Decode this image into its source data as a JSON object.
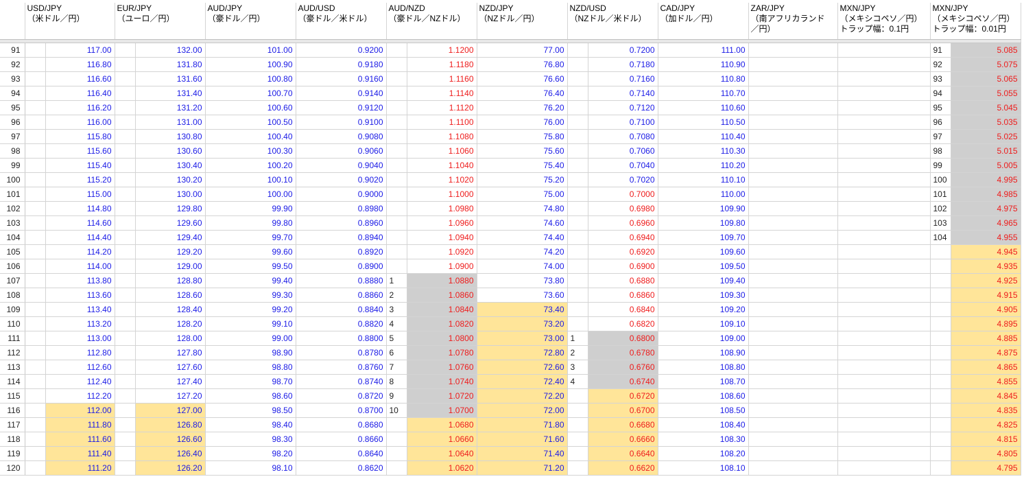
{
  "headers": [
    {
      "title": "USD/JPY",
      "sub": "（米ドル／円）"
    },
    {
      "title": "EUR/JPY",
      "sub": "（ユーロ／円）"
    },
    {
      "title": "AUD/JPY",
      "sub": "（豪ドル／円）"
    },
    {
      "title": "AUD/USD",
      "sub": "（豪ドル／米ドル）"
    },
    {
      "title": "AUD/NZD",
      "sub": "（豪ドル／NZドル）"
    },
    {
      "title": "NZD/JPY",
      "sub": "（NZドル／円）"
    },
    {
      "title": "NZD/USD",
      "sub": "（NZドル／米ドル）"
    },
    {
      "title": "CAD/JPY",
      "sub": "（加ドル／円）"
    },
    {
      "title": "ZAR/JPY",
      "sub": "（南アフリカランド",
      "sub2": "／円）"
    },
    {
      "title": "MXN/JPY",
      "sub": "（メキシコペソ／円）",
      "sub2": "トラップ幅：0.1円"
    },
    {
      "title": "MXN/JPY",
      "sub": "（メキシコペソ／円）",
      "sub2": "トラップ幅：0.01円"
    }
  ],
  "rows": [
    {
      "n": "91",
      "usd": "117.00",
      "eur": "132.00",
      "audjpy": "101.00",
      "audusd": "0.9200",
      "audnzd_i": "",
      "audnzd": "1.1200",
      "nzdjpy": "77.00",
      "nzdusd_i": "",
      "nzdusd": "0.7200",
      "cad": "111.00",
      "mxn_i": "91",
      "mxn": "5.085"
    },
    {
      "n": "92",
      "usd": "116.80",
      "eur": "131.80",
      "audjpy": "100.90",
      "audusd": "0.9180",
      "audnzd_i": "",
      "audnzd": "1.1180",
      "nzdjpy": "76.80",
      "nzdusd_i": "",
      "nzdusd": "0.7180",
      "cad": "110.90",
      "mxn_i": "92",
      "mxn": "5.075"
    },
    {
      "n": "93",
      "usd": "116.60",
      "eur": "131.60",
      "audjpy": "100.80",
      "audusd": "0.9160",
      "audnzd_i": "",
      "audnzd": "1.1160",
      "nzdjpy": "76.60",
      "nzdusd_i": "",
      "nzdusd": "0.7160",
      "cad": "110.80",
      "mxn_i": "93",
      "mxn": "5.065"
    },
    {
      "n": "94",
      "usd": "116.40",
      "eur": "131.40",
      "audjpy": "100.70",
      "audusd": "0.9140",
      "audnzd_i": "",
      "audnzd": "1.1140",
      "nzdjpy": "76.40",
      "nzdusd_i": "",
      "nzdusd": "0.7140",
      "cad": "110.70",
      "mxn_i": "94",
      "mxn": "5.055"
    },
    {
      "n": "95",
      "usd": "116.20",
      "eur": "131.20",
      "audjpy": "100.60",
      "audusd": "0.9120",
      "audnzd_i": "",
      "audnzd": "1.1120",
      "nzdjpy": "76.20",
      "nzdusd_i": "",
      "nzdusd": "0.7120",
      "cad": "110.60",
      "mxn_i": "95",
      "mxn": "5.045"
    },
    {
      "n": "96",
      "usd": "116.00",
      "eur": "131.00",
      "audjpy": "100.50",
      "audusd": "0.9100",
      "audnzd_i": "",
      "audnzd": "1.1100",
      "nzdjpy": "76.00",
      "nzdusd_i": "",
      "nzdusd": "0.7100",
      "cad": "110.50",
      "mxn_i": "96",
      "mxn": "5.035"
    },
    {
      "n": "97",
      "usd": "115.80",
      "eur": "130.80",
      "audjpy": "100.40",
      "audusd": "0.9080",
      "audnzd_i": "",
      "audnzd": "1.1080",
      "nzdjpy": "75.80",
      "nzdusd_i": "",
      "nzdusd": "0.7080",
      "cad": "110.40",
      "mxn_i": "97",
      "mxn": "5.025"
    },
    {
      "n": "98",
      "usd": "115.60",
      "eur": "130.60",
      "audjpy": "100.30",
      "audusd": "0.9060",
      "audnzd_i": "",
      "audnzd": "1.1060",
      "nzdjpy": "75.60",
      "nzdusd_i": "",
      "nzdusd": "0.7060",
      "cad": "110.30",
      "mxn_i": "98",
      "mxn": "5.015"
    },
    {
      "n": "99",
      "usd": "115.40",
      "eur": "130.40",
      "audjpy": "100.20",
      "audusd": "0.9040",
      "audnzd_i": "",
      "audnzd": "1.1040",
      "nzdjpy": "75.40",
      "nzdusd_i": "",
      "nzdusd": "0.7040",
      "cad": "110.20",
      "mxn_i": "99",
      "mxn": "5.005"
    },
    {
      "n": "100",
      "usd": "115.20",
      "eur": "130.20",
      "audjpy": "100.10",
      "audusd": "0.9020",
      "audnzd_i": "",
      "audnzd": "1.1020",
      "nzdjpy": "75.20",
      "nzdusd_i": "",
      "nzdusd": "0.7020",
      "cad": "110.10",
      "mxn_i": "100",
      "mxn": "4.995"
    },
    {
      "n": "101",
      "usd": "115.00",
      "eur": "130.00",
      "audjpy": "100.00",
      "audusd": "0.9000",
      "audnzd_i": "",
      "audnzd": "1.1000",
      "nzdjpy": "75.00",
      "nzdusd_i": "",
      "nzdusd": "0.7000",
      "cad": "110.00",
      "mxn_i": "101",
      "mxn": "4.985"
    },
    {
      "n": "102",
      "usd": "114.80",
      "eur": "129.80",
      "audjpy": "99.90",
      "audusd": "0.8980",
      "audnzd_i": "",
      "audnzd": "1.0980",
      "nzdjpy": "74.80",
      "nzdusd_i": "",
      "nzdusd": "0.6980",
      "cad": "109.90",
      "mxn_i": "102",
      "mxn": "4.975"
    },
    {
      "n": "103",
      "usd": "114.60",
      "eur": "129.60",
      "audjpy": "99.80",
      "audusd": "0.8960",
      "audnzd_i": "",
      "audnzd": "1.0960",
      "nzdjpy": "74.60",
      "nzdusd_i": "",
      "nzdusd": "0.6960",
      "cad": "109.80",
      "mxn_i": "103",
      "mxn": "4.965"
    },
    {
      "n": "104",
      "usd": "114.40",
      "eur": "129.40",
      "audjpy": "99.70",
      "audusd": "0.8940",
      "audnzd_i": "",
      "audnzd": "1.0940",
      "nzdjpy": "74.40",
      "nzdusd_i": "",
      "nzdusd": "0.6940",
      "cad": "109.70",
      "mxn_i": "104",
      "mxn": "4.955"
    },
    {
      "n": "105",
      "usd": "114.20",
      "eur": "129.20",
      "audjpy": "99.60",
      "audusd": "0.8920",
      "audnzd_i": "",
      "audnzd": "1.0920",
      "nzdjpy": "74.20",
      "nzdusd_i": "",
      "nzdusd": "0.6920",
      "cad": "109.60",
      "mxn_i": "",
      "mxn": "4.945"
    },
    {
      "n": "106",
      "usd": "114.00",
      "eur": "129.00",
      "audjpy": "99.50",
      "audusd": "0.8900",
      "audnzd_i": "",
      "audnzd": "1.0900",
      "nzdjpy": "74.00",
      "nzdusd_i": "",
      "nzdusd": "0.6900",
      "cad": "109.50",
      "mxn_i": "",
      "mxn": "4.935"
    },
    {
      "n": "107",
      "usd": "113.80",
      "eur": "128.80",
      "audjpy": "99.40",
      "audusd": "0.8880",
      "audnzd_i": "1",
      "audnzd": "1.0880",
      "nzdjpy": "73.80",
      "nzdusd_i": "",
      "nzdusd": "0.6880",
      "cad": "109.40",
      "mxn_i": "",
      "mxn": "4.925"
    },
    {
      "n": "108",
      "usd": "113.60",
      "eur": "128.60",
      "audjpy": "99.30",
      "audusd": "0.8860",
      "audnzd_i": "2",
      "audnzd": "1.0860",
      "nzdjpy": "73.60",
      "nzdusd_i": "",
      "nzdusd": "0.6860",
      "cad": "109.30",
      "mxn_i": "",
      "mxn": "4.915"
    },
    {
      "n": "109",
      "usd": "113.40",
      "eur": "128.40",
      "audjpy": "99.20",
      "audusd": "0.8840",
      "audnzd_i": "3",
      "audnzd": "1.0840",
      "nzdjpy": "73.40",
      "nzdusd_i": "",
      "nzdusd": "0.6840",
      "cad": "109.20",
      "mxn_i": "",
      "mxn": "4.905"
    },
    {
      "n": "110",
      "usd": "113.20",
      "eur": "128.20",
      "audjpy": "99.10",
      "audusd": "0.8820",
      "audnzd_i": "4",
      "audnzd": "1.0820",
      "nzdjpy": "73.20",
      "nzdusd_i": "",
      "nzdusd": "0.6820",
      "cad": "109.10",
      "mxn_i": "",
      "mxn": "4.895"
    },
    {
      "n": "111",
      "usd": "113.00",
      "eur": "128.00",
      "audjpy": "99.00",
      "audusd": "0.8800",
      "audnzd_i": "5",
      "audnzd": "1.0800",
      "nzdjpy": "73.00",
      "nzdusd_i": "1",
      "nzdusd": "0.6800",
      "cad": "109.00",
      "mxn_i": "",
      "mxn": "4.885"
    },
    {
      "n": "112",
      "usd": "112.80",
      "eur": "127.80",
      "audjpy": "98.90",
      "audusd": "0.8780",
      "audnzd_i": "6",
      "audnzd": "1.0780",
      "nzdjpy": "72.80",
      "nzdusd_i": "2",
      "nzdusd": "0.6780",
      "cad": "108.90",
      "mxn_i": "",
      "mxn": "4.875"
    },
    {
      "n": "113",
      "usd": "112.60",
      "eur": "127.60",
      "audjpy": "98.80",
      "audusd": "0.8760",
      "audnzd_i": "7",
      "audnzd": "1.0760",
      "nzdjpy": "72.60",
      "nzdusd_i": "3",
      "nzdusd": "0.6760",
      "cad": "108.80",
      "mxn_i": "",
      "mxn": "4.865"
    },
    {
      "n": "114",
      "usd": "112.40",
      "eur": "127.40",
      "audjpy": "98.70",
      "audusd": "0.8740",
      "audnzd_i": "8",
      "audnzd": "1.0740",
      "nzdjpy": "72.40",
      "nzdusd_i": "4",
      "nzdusd": "0.6740",
      "cad": "108.70",
      "mxn_i": "",
      "mxn": "4.855"
    },
    {
      "n": "115",
      "usd": "112.20",
      "eur": "127.20",
      "audjpy": "98.60",
      "audusd": "0.8720",
      "audnzd_i": "9",
      "audnzd": "1.0720",
      "nzdjpy": "72.20",
      "nzdusd_i": "",
      "nzdusd": "0.6720",
      "cad": "108.60",
      "mxn_i": "",
      "mxn": "4.845"
    },
    {
      "n": "116",
      "usd": "112.00",
      "eur": "127.00",
      "audjpy": "98.50",
      "audusd": "0.8700",
      "audnzd_i": "10",
      "audnzd": "1.0700",
      "nzdjpy": "72.00",
      "nzdusd_i": "",
      "nzdusd": "0.6700",
      "cad": "108.50",
      "mxn_i": "",
      "mxn": "4.835"
    },
    {
      "n": "117",
      "usd": "111.80",
      "eur": "126.80",
      "audjpy": "98.40",
      "audusd": "0.8680",
      "audnzd_i": "",
      "audnzd": "1.0680",
      "nzdjpy": "71.80",
      "nzdusd_i": "",
      "nzdusd": "0.6680",
      "cad": "108.40",
      "mxn_i": "",
      "mxn": "4.825"
    },
    {
      "n": "118",
      "usd": "111.60",
      "eur": "126.60",
      "audjpy": "98.30",
      "audusd": "0.8660",
      "audnzd_i": "",
      "audnzd": "1.0660",
      "nzdjpy": "71.60",
      "nzdusd_i": "",
      "nzdusd": "0.6660",
      "cad": "108.30",
      "mxn_i": "",
      "mxn": "4.815"
    },
    {
      "n": "119",
      "usd": "111.40",
      "eur": "126.40",
      "audjpy": "98.20",
      "audusd": "0.8640",
      "audnzd_i": "",
      "audnzd": "1.0640",
      "nzdjpy": "71.40",
      "nzdusd_i": "",
      "nzdusd": "0.6640",
      "cad": "108.20",
      "mxn_i": "",
      "mxn": "4.805"
    },
    {
      "n": "120",
      "usd": "111.20",
      "eur": "126.20",
      "audjpy": "98.10",
      "audusd": "0.8620",
      "audnzd_i": "",
      "audnzd": "1.0620",
      "nzdjpy": "71.20",
      "nzdusd_i": "",
      "nzdusd": "0.6620",
      "cad": "108.10",
      "mxn_i": "",
      "mxn": "4.795"
    }
  ]
}
